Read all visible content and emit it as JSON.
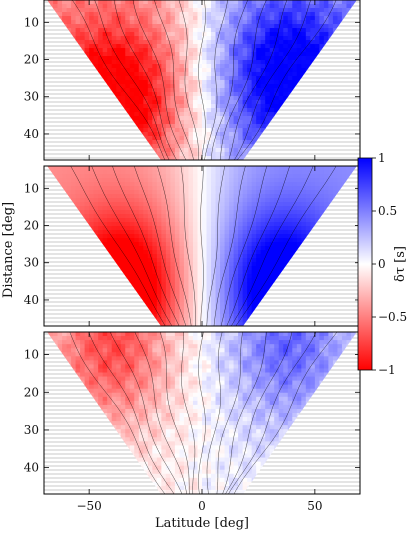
{
  "chart_data": {
    "type": "heatmap",
    "description_of_panels": "three stacked contour maps of travel-time perturbation vs latitude and distance",
    "x_axis": {
      "label": "Latitude [deg]",
      "range": [
        -70,
        70
      ],
      "ticks": [
        -50,
        0,
        50
      ],
      "tick_labels": [
        "−50",
        "0",
        "50"
      ]
    },
    "y_axis": {
      "label": "Distance [deg]",
      "range": [
        4,
        47
      ],
      "inverted": true,
      "ticks": [
        10,
        20,
        30,
        40
      ],
      "tick_labels": [
        "10",
        "20",
        "30",
        "40"
      ]
    },
    "colorbar": {
      "label": "δτ [s]",
      "range": [
        -1,
        1
      ],
      "ticks": [
        1,
        0.5,
        0,
        -0.5,
        -1
      ],
      "tick_labels": [
        "1",
        "0.5",
        "0",
        "−0.5",
        "−1"
      ],
      "colors": {
        "low": "#ff0000",
        "mid": "#ffffff",
        "high": "#0000ff"
      }
    },
    "panels": [
      {
        "name": "top",
        "peak_negative": -0.85,
        "peak_positive": 0.8,
        "negative_center": [
          -38,
          31
        ],
        "positive_center": [
          38,
          25
        ],
        "smooth": false
      },
      {
        "name": "middle",
        "peak_negative": -0.95,
        "peak_positive": 0.9,
        "negative_center": [
          -35,
          37
        ],
        "positive_center": [
          35,
          37
        ],
        "smooth": true
      },
      {
        "name": "bottom",
        "peak_negative": -0.6,
        "peak_positive": 0.5,
        "negative_center": [
          -40,
          8
        ],
        "positive_center": [
          38,
          7
        ],
        "smooth": false
      }
    ],
    "masked_region_fill": "hatched grey",
    "grid": false
  }
}
